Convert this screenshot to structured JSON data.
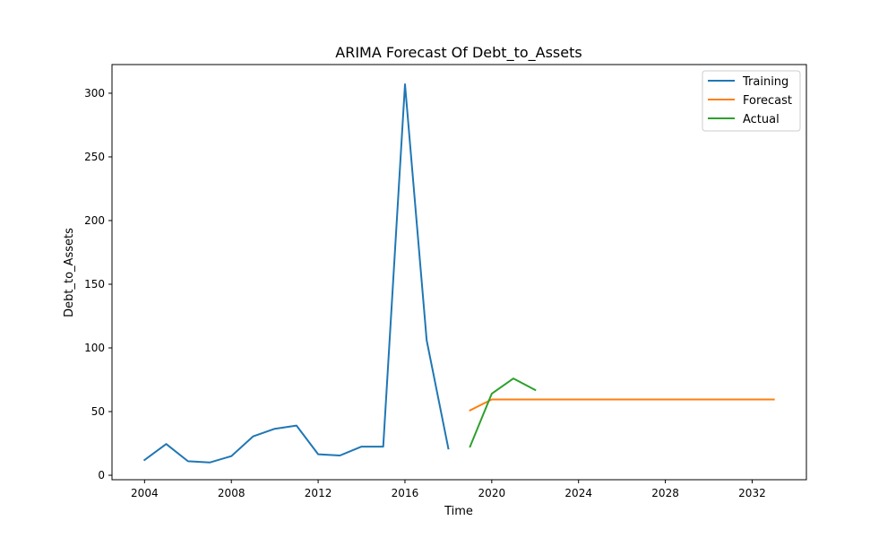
{
  "chart_data": {
    "type": "line",
    "title": "ARIMA Forecast Of Debt_to_Assets",
    "xlabel": "Time",
    "ylabel": "Debt_to_Assets",
    "xlim": [
      2002.5,
      2034.5
    ],
    "ylim": [
      -3.5,
      322.5
    ],
    "xticks": [
      "2004",
      "2008",
      "2012",
      "2016",
      "2020",
      "2024",
      "2028",
      "2032"
    ],
    "yticks": [
      "0",
      "50",
      "100",
      "150",
      "200",
      "250",
      "300"
    ],
    "grid": false,
    "legend_position": "top-right",
    "series": [
      {
        "name": "Training",
        "color": "#1f77b4",
        "x": [
          2004,
          2005,
          2006,
          2007,
          2008,
          2009,
          2010,
          2011,
          2012,
          2013,
          2014,
          2015,
          2016,
          2017,
          2018
        ],
        "y": [
          12,
          24.5,
          11,
          10,
          15,
          30.5,
          36.5,
          39,
          16.5,
          15.5,
          22.5,
          22.5,
          307,
          106,
          21
        ]
      },
      {
        "name": "Forecast",
        "color": "#ff7f0e",
        "x": [
          2019,
          2020,
          2021,
          2022,
          2023,
          2024,
          2025,
          2026,
          2027,
          2028,
          2029,
          2030,
          2031,
          2032,
          2033
        ],
        "y": [
          51,
          59.5,
          59.5,
          59.5,
          59.5,
          59.5,
          59.5,
          59.5,
          59.5,
          59.5,
          59.5,
          59.5,
          59.5,
          59.5,
          59.5
        ]
      },
      {
        "name": "Actual",
        "color": "#2ca02c",
        "x": [
          2019,
          2020,
          2021,
          2022
        ],
        "y": [
          22.5,
          64,
          76,
          67
        ]
      }
    ]
  }
}
